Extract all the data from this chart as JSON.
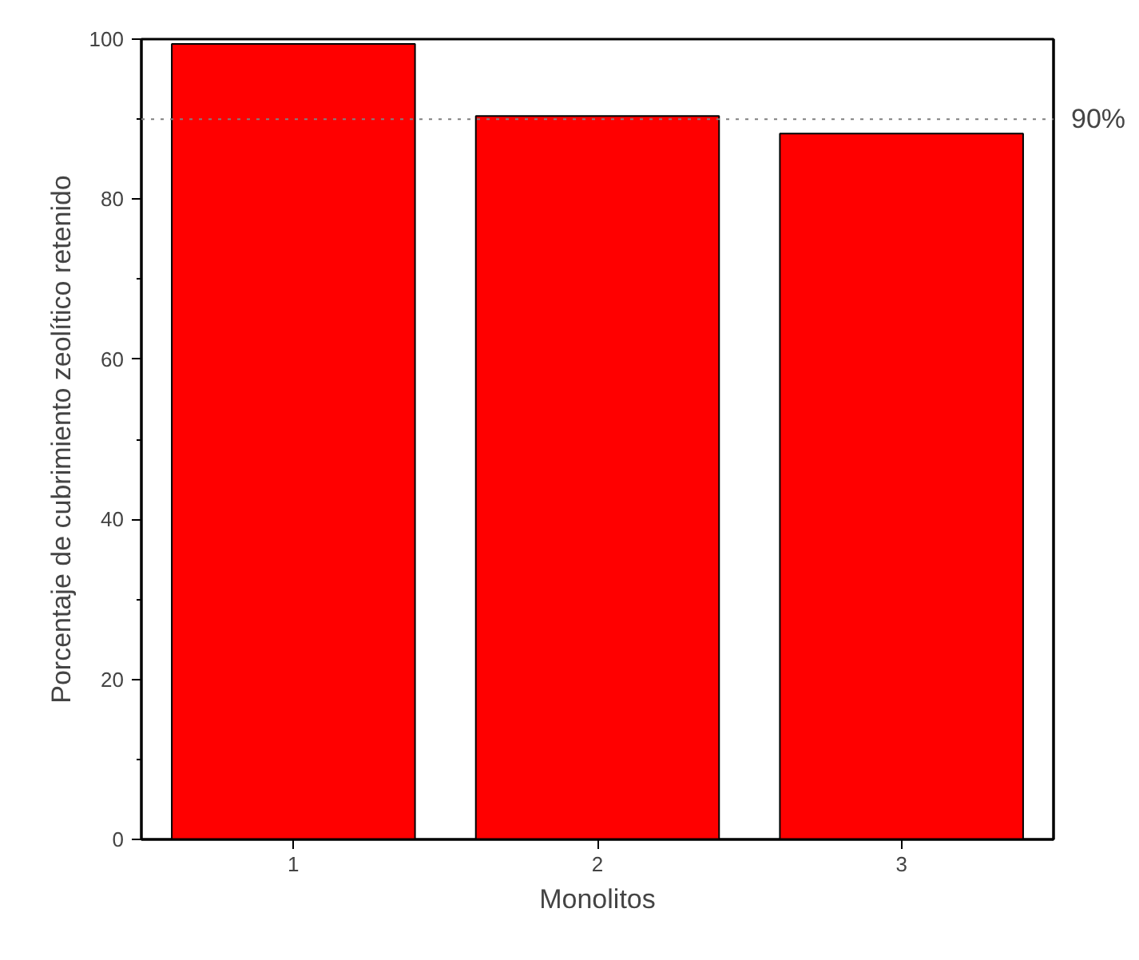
{
  "chart_data": {
    "type": "bar",
    "xlabel": "Monolitos",
    "ylabel": "Porcentaje de cubrimiento zeolítico retenido",
    "categories": [
      "1",
      "2",
      "3"
    ],
    "values": [
      99.4,
      90.4,
      88.2
    ],
    "color": "#ff0000",
    "ylim": [
      0,
      100
    ],
    "yticks": [
      0,
      20,
      40,
      60,
      80,
      100
    ],
    "grid": false,
    "ref_lines": [
      {
        "axis": "y",
        "value": 90,
        "label": "90%",
        "color": "#808080",
        "line_style": "dotted"
      }
    ]
  }
}
